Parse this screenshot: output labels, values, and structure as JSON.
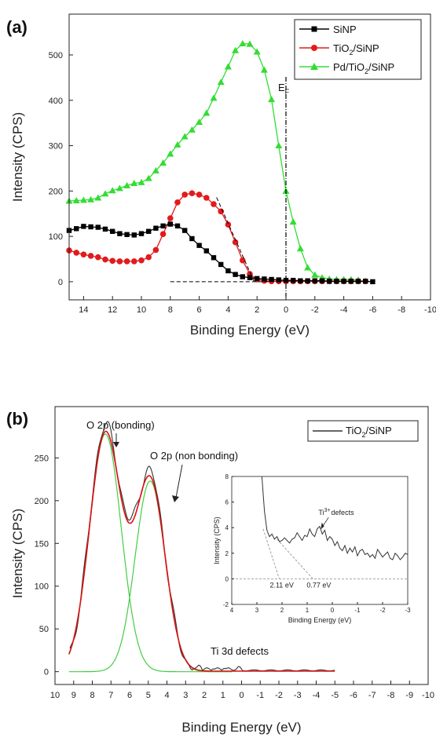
{
  "chart_data": [
    {
      "panel_label": "(a)",
      "type": "line",
      "xlabel": "Binding Energy (eV)",
      "ylabel": "Intensity (CPS)",
      "xlim": [
        15,
        -10
      ],
      "ylim": [
        -40,
        590
      ],
      "xticks": [
        14,
        12,
        10,
        8,
        6,
        4,
        2,
        0,
        -2,
        -4,
        -6,
        -8,
        -10
      ],
      "yticks": [
        0,
        100,
        200,
        300,
        400,
        500
      ],
      "legend": "top-right",
      "series": [
        {
          "name": "SiNP",
          "name_main": "SiNP",
          "name_sub1": "",
          "name_mid": "",
          "name_sub2": "",
          "name_tail": "",
          "color": "#000000",
          "marker": "square",
          "x": [
            15,
            14.5,
            14,
            13.5,
            13,
            12.5,
            12,
            11.5,
            11,
            10.5,
            10,
            9.5,
            9,
            8.5,
            8,
            7.5,
            7,
            6.5,
            6,
            5.5,
            5,
            4.5,
            4,
            3.5,
            3,
            2.5,
            2,
            1.5,
            1,
            0.5,
            0,
            -0.5,
            -1,
            -1.5,
            -2,
            -2.5,
            -3,
            -3.5,
            -4,
            -4.5,
            -5,
            -5.5,
            -6
          ],
          "y": [
            113,
            117,
            122,
            121,
            120,
            116,
            111,
            106,
            104,
            103,
            106,
            111,
            118,
            123,
            127,
            123,
            113,
            95,
            80,
            68,
            53,
            38,
            24,
            16,
            11,
            9,
            7,
            6,
            5,
            4,
            3,
            3,
            2,
            2,
            2,
            2,
            1,
            1,
            1,
            1,
            1,
            1,
            0
          ]
        },
        {
          "name": "TiO2/SiNP",
          "name_main": "TiO",
          "name_sub1": "2",
          "name_mid": "/SiNP",
          "name_sub2": "",
          "name_tail": "",
          "color": "#e31a1c",
          "marker": "circle",
          "x": [
            15,
            14.5,
            14,
            13.5,
            13,
            12.5,
            12,
            11.5,
            11,
            10.5,
            10,
            9.5,
            9,
            8.5,
            8,
            7.5,
            7,
            6.5,
            6,
            5.5,
            5,
            4.5,
            4,
            3.5,
            3,
            2.5,
            2,
            1.5,
            1,
            0.5,
            0,
            -0.5,
            -1,
            -1.5,
            -2,
            -2.5,
            -3,
            -3.5,
            -4,
            -4.5,
            -5,
            -5.5
          ],
          "y": [
            69,
            64,
            60,
            57,
            54,
            49,
            46,
            45,
            45,
            45,
            47,
            54,
            70,
            105,
            140,
            175,
            192,
            195,
            192,
            185,
            171,
            155,
            126,
            87,
            47,
            17,
            5,
            2,
            1,
            1,
            1,
            1,
            1,
            1,
            1,
            1,
            1,
            1,
            1,
            1,
            1,
            1
          ]
        },
        {
          "name": "Pd/TiO2/SiNP",
          "name_main": "Pd/TiO",
          "name_sub1": "2",
          "name_mid": "/SiNP",
          "name_sub2": "",
          "name_tail": "",
          "color": "#33dd33",
          "marker": "triangle",
          "x": [
            15,
            14.5,
            14,
            13.5,
            13,
            12.5,
            12,
            11.5,
            11,
            10.5,
            10,
            9.5,
            9,
            8.5,
            8,
            7.5,
            7,
            6.5,
            6,
            5.5,
            5,
            4.5,
            4,
            3.5,
            3,
            2.5,
            2,
            1.5,
            1,
            0.5,
            0,
            -0.5,
            -1,
            -1.5,
            -2,
            -2.5,
            -3,
            -3.5,
            -4,
            -4.5,
            -5
          ],
          "y": [
            178,
            179,
            180,
            181,
            185,
            194,
            201,
            206,
            212,
            217,
            219,
            228,
            245,
            262,
            282,
            302,
            320,
            335,
            352,
            372,
            405,
            440,
            474,
            510,
            525,
            524,
            507,
            467,
            402,
            300,
            200,
            132,
            73,
            31,
            15,
            9,
            6,
            5,
            5,
            5,
            4
          ]
        }
      ],
      "annotation_ef_main": "E",
      "annotation_ef_sub": "F",
      "ef_x": 0
    },
    {
      "panel_label": "(b)",
      "type": "line",
      "xlabel": "Binding Energy (eV)",
      "ylabel": "Intensity (CPS)",
      "xlim": [
        10,
        -10
      ],
      "ylim": [
        -15,
        310
      ],
      "xticks": [
        10,
        9,
        8,
        7,
        6,
        5,
        4,
        3,
        2,
        1,
        0,
        -1,
        -2,
        -3,
        -4,
        -5,
        -6,
        -7,
        -8,
        -9,
        -10
      ],
      "yticks": [
        0,
        50,
        100,
        150,
        200,
        250
      ],
      "legend": "top-right",
      "legend_main": "TiO",
      "legend_sub": "2",
      "legend_tail": "/SiNP",
      "annotations": {
        "bonding": "O 2p (bonding)",
        "nonbonding": "O 2p (non bonding)",
        "ti3d": "Ti 3d defects"
      },
      "components": [
        {
          "name": "O 2p bonding fit",
          "color": "#44cc44",
          "center": 7.3,
          "amplitude": 278,
          "sigma": 0.85
        },
        {
          "name": "O 2p non bonding fit",
          "color": "#44cc44",
          "center": 4.9,
          "amplitude": 223,
          "sigma": 0.8
        }
      ],
      "envelope_color": "#dd1111",
      "data_color": "#333333",
      "inset": {
        "xlabel": "Binding Energy (eV)",
        "ylabel": "Intensity (CPS)",
        "xlim": [
          4,
          -3
        ],
        "ylim": [
          -2,
          8
        ],
        "xticks": [
          4,
          3,
          2,
          1,
          0,
          -1,
          -2,
          -3
        ],
        "yticks": [
          -2,
          0,
          2,
          4,
          6,
          8
        ],
        "annotation_main": "Ti",
        "annotation_sup": "3+",
        "annotation_tail": "defects",
        "marker_1": "2.11 eV",
        "marker_2": "0.77 eV",
        "marker_1_x": 2.11,
        "marker_2_x": 0.77,
        "x": [
          2.8,
          2.7,
          2.6,
          2.5,
          2.4,
          2.3,
          2.2,
          2.1,
          2.0,
          1.9,
          1.8,
          1.7,
          1.6,
          1.5,
          1.4,
          1.3,
          1.2,
          1.1,
          1.0,
          0.9,
          0.8,
          0.7,
          0.6,
          0.5,
          0.4,
          0.3,
          0.2,
          0.1,
          0.0,
          -0.1,
          -0.2,
          -0.3,
          -0.4,
          -0.5,
          -0.6,
          -0.7,
          -0.8,
          -0.9,
          -1.0,
          -1.1,
          -1.2,
          -1.3,
          -1.4,
          -1.5,
          -1.6,
          -1.7,
          -1.8,
          -1.9,
          -2.0,
          -2.1,
          -2.2,
          -2.3,
          -2.4,
          -2.5,
          -2.6,
          -2.7,
          -2.8,
          -2.9,
          -3.0
        ],
        "y": [
          8.0,
          5.3,
          3.8,
          3.3,
          3.5,
          3.1,
          3.3,
          2.9,
          3.0,
          3.2,
          3.0,
          2.8,
          3.1,
          3.2,
          3.6,
          3.3,
          3.0,
          3.4,
          3.3,
          3.9,
          3.5,
          3.3,
          3.9,
          4.1,
          3.5,
          3.8,
          3.0,
          3.3,
          3.1,
          2.6,
          2.9,
          2.4,
          2.2,
          2.6,
          2.0,
          2.4,
          2.1,
          2.5,
          1.8,
          2.2,
          2.3,
          1.9,
          2.0,
          1.7,
          1.9,
          1.6,
          2.3,
          2.0,
          1.7,
          1.9,
          2.1,
          1.6,
          1.5,
          2.0,
          1.8,
          1.5,
          1.7,
          2.0,
          1.9
        ]
      }
    }
  ]
}
